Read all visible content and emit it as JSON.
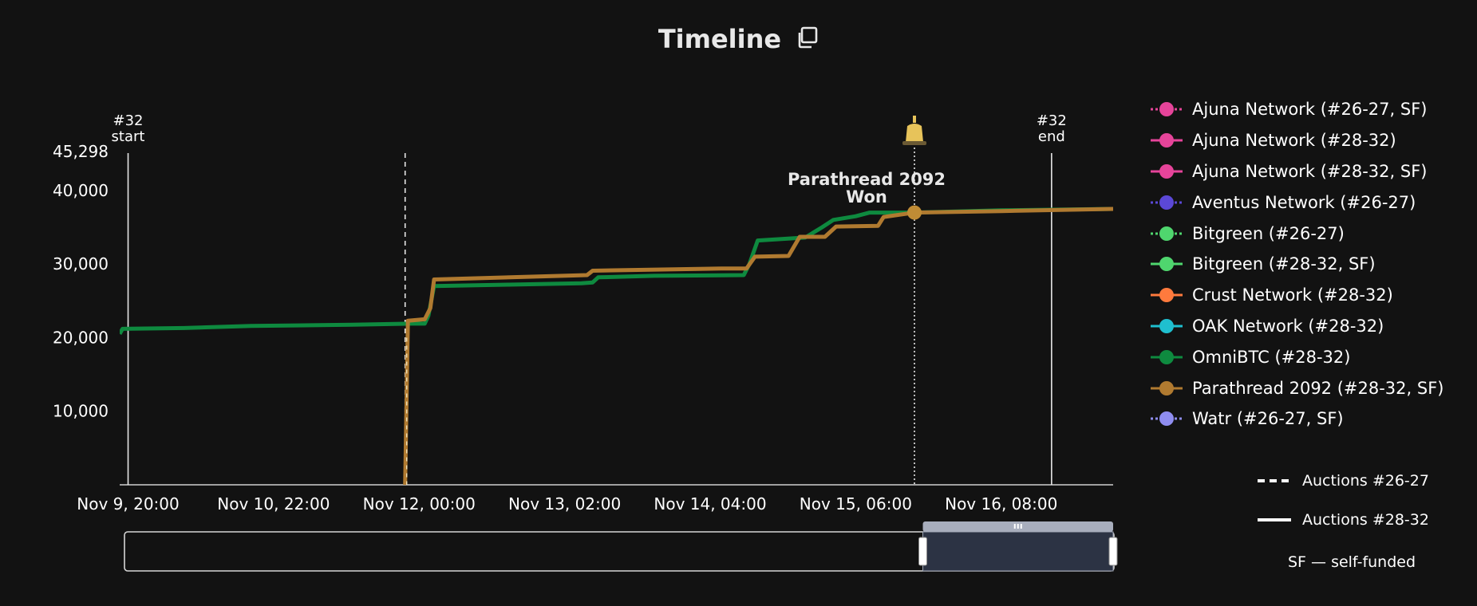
{
  "header": {
    "title": "Timeline"
  },
  "legend": [
    {
      "label": "Ajuna Network (#26-27, SF)",
      "color": "#e6449a",
      "dash": "dotted"
    },
    {
      "label": "Ajuna Network (#28-32)",
      "color": "#e6449a",
      "dash": "solid"
    },
    {
      "label": "Ajuna Network (#28-32, SF)",
      "color": "#e6449a",
      "dash": "solid"
    },
    {
      "label": "Aventus Network (#26-27)",
      "color": "#5b48d6",
      "dash": "dotted"
    },
    {
      "label": "Bitgreen (#26-27)",
      "color": "#4fd66e",
      "dash": "dotted"
    },
    {
      "label": "Bitgreen (#28-32, SF)",
      "color": "#4fd66e",
      "dash": "solid"
    },
    {
      "label": "Crust Network (#28-32)",
      "color": "#ff7a3d",
      "dash": "solid"
    },
    {
      "label": "OAK Network (#28-32)",
      "color": "#1fbfcf",
      "dash": "solid"
    },
    {
      "label": "OmniBTC (#28-32)",
      "color": "#0e8a3f",
      "dash": "solid"
    },
    {
      "label": "Parathread 2092 (#28-32, SF)",
      "color": "#b07a30",
      "dash": "solid"
    },
    {
      "label": "Watr (#26-27, SF)",
      "color": "#8f8df0",
      "dash": "dotted"
    }
  ],
  "line_styles": {
    "dashed_label": "Auctions #26-27",
    "solid_label": "Auctions #28-32"
  },
  "sf_note": "SF — self-funded",
  "chart_data": {
    "type": "line",
    "x_axis": {
      "type": "time",
      "range": [
        "2022-11-09T18:30",
        "2022-11-17T04:00"
      ],
      "ticks": [
        {
          "t": "2022-11-09T20:00",
          "label": "Nov 9, 20:00"
        },
        {
          "t": "2022-11-10T22:00",
          "label": "Nov 10, 22:00"
        },
        {
          "t": "2022-11-12T00:00",
          "label": "Nov 12, 00:00"
        },
        {
          "t": "2022-11-13T02:00",
          "label": "Nov 13, 02:00"
        },
        {
          "t": "2022-11-14T04:00",
          "label": "Nov 14, 04:00"
        },
        {
          "t": "2022-11-15T06:00",
          "label": "Nov 15, 06:00"
        },
        {
          "t": "2022-11-16T08:00",
          "label": "Nov 16, 08:00"
        }
      ]
    },
    "y_axis": {
      "range": [
        0,
        45298
      ],
      "ticks": [
        {
          "v": 10000,
          "label": "10,000"
        },
        {
          "v": 20000,
          "label": "20,000"
        },
        {
          "v": 30000,
          "label": "30,000"
        },
        {
          "v": 40000,
          "label": "40,000"
        },
        {
          "v": 45298,
          "label": "45,298"
        }
      ]
    },
    "grid": false,
    "legend_position": "right",
    "markers": [
      {
        "t": "2022-11-09T20:00",
        "line1": "#32",
        "line2": "start",
        "style": "solid"
      },
      {
        "t": "2022-11-11T21:30",
        "style": "dashed"
      },
      {
        "t": "2022-11-15T16:30",
        "style": "dotted"
      },
      {
        "t": "2022-11-16T17:00",
        "line1": "#32",
        "line2": "end",
        "style": "solid"
      }
    ],
    "annotation": {
      "line1": "Parathread 2092",
      "line2": "Won",
      "t": "2022-11-15T16:30",
      "value": 37000,
      "color": "#c08c35"
    },
    "series": [
      {
        "name": "OmniBTC (#28-32)",
        "color": "#0e8a3f",
        "points": [
          [
            "2022-11-09T18:30",
            20500
          ],
          [
            "2022-11-09T19:00",
            21200
          ],
          [
            "2022-11-10T06:00",
            21300
          ],
          [
            "2022-11-10T18:00",
            21600
          ],
          [
            "2022-11-11T12:00",
            21750
          ],
          [
            "2022-11-11T22:30",
            21900
          ],
          [
            "2022-11-12T01:00",
            21900
          ],
          [
            "2022-11-12T01:40",
            23000
          ],
          [
            "2022-11-12T02:40",
            27000
          ],
          [
            "2022-11-12T16:00",
            27200
          ],
          [
            "2022-11-13T05:00",
            27400
          ],
          [
            "2022-11-13T07:00",
            27500
          ],
          [
            "2022-11-13T08:00",
            28200
          ],
          [
            "2022-11-13T18:00",
            28400
          ],
          [
            "2022-11-14T10:00",
            28500
          ],
          [
            "2022-11-14T11:00",
            30000
          ],
          [
            "2022-11-14T12:30",
            33200
          ],
          [
            "2022-11-14T21:00",
            33600
          ],
          [
            "2022-11-15T00:00",
            35000
          ],
          [
            "2022-11-15T02:00",
            36000
          ],
          [
            "2022-11-15T06:00",
            36500
          ],
          [
            "2022-11-15T08:30",
            37000
          ],
          [
            "2022-11-15T16:30",
            37000
          ],
          [
            "2022-11-16T08:00",
            37300
          ],
          [
            "2022-11-17T04:00",
            37500
          ]
        ]
      },
      {
        "name": "Parathread 2092 (#28-32, SF)",
        "color": "#b07a30",
        "points": [
          [
            "2022-11-11T21:30",
            0
          ],
          [
            "2022-11-11T22:00",
            22300
          ],
          [
            "2022-11-12T01:00",
            22500
          ],
          [
            "2022-11-12T02:00",
            24000
          ],
          [
            "2022-11-12T02:40",
            27900
          ],
          [
            "2022-11-13T06:00",
            28500
          ],
          [
            "2022-11-13T07:00",
            29100
          ],
          [
            "2022-11-14T06:00",
            29400
          ],
          [
            "2022-11-14T10:30",
            29400
          ],
          [
            "2022-11-14T12:00",
            31000
          ],
          [
            "2022-11-14T18:00",
            31100
          ],
          [
            "2022-11-14T20:00",
            33700
          ],
          [
            "2022-11-15T00:30",
            33700
          ],
          [
            "2022-11-15T02:30",
            35100
          ],
          [
            "2022-11-15T10:00",
            35200
          ],
          [
            "2022-11-15T11:00",
            36400
          ],
          [
            "2022-11-15T16:30",
            37000
          ],
          [
            "2022-11-16T08:00",
            37200
          ],
          [
            "2022-11-17T04:00",
            37500
          ]
        ]
      }
    ],
    "zoom_window": {
      "start": "2022-11-15T18:00",
      "end": "2022-11-17T04:00"
    }
  }
}
